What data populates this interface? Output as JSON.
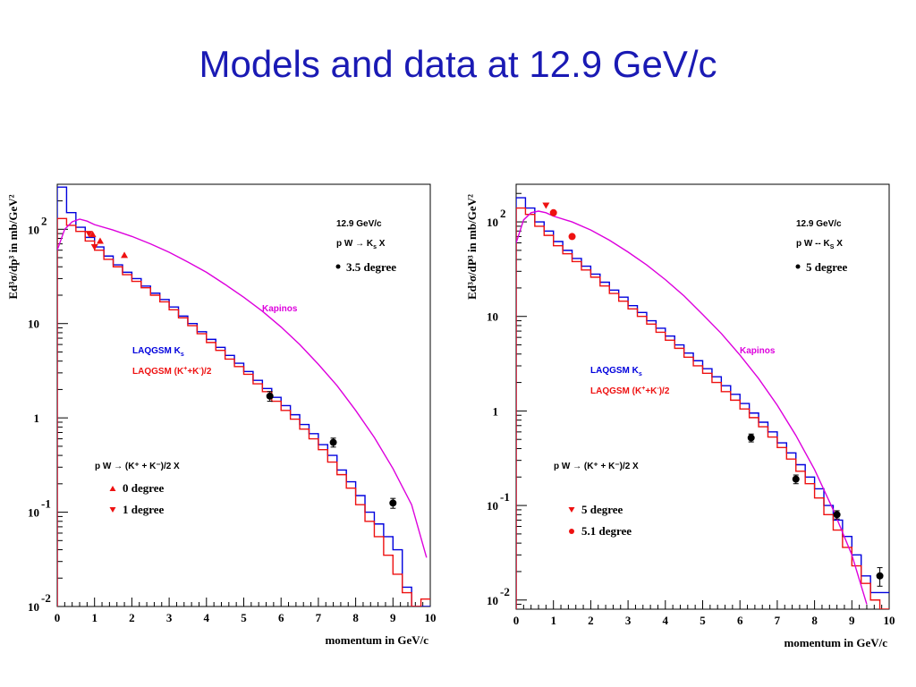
{
  "page": {
    "title": "Models and data at 12.9 GeV/c"
  },
  "chart_data": [
    {
      "type": "line",
      "xlabel": "momentum in GeV/c",
      "ylabel": "Ed³σ/dp³ in mb/GeV²",
      "xlim": [
        0,
        10
      ],
      "ylim": [
        0.01,
        300
      ],
      "log_y": true,
      "x_ticks": [
        "0",
        "1",
        "2",
        "3",
        "4",
        "5",
        "6",
        "7",
        "8",
        "9",
        "10"
      ],
      "y_ticks": [
        {
          "v": 0.01,
          "base": "10",
          "exp": "-2"
        },
        {
          "v": 0.1,
          "base": "10",
          "exp": "-1"
        },
        {
          "v": 1,
          "base": "1",
          "exp": ""
        },
        {
          "v": 10,
          "base": "10",
          "exp": ""
        },
        {
          "v": 100,
          "base": "10",
          "exp": "2"
        }
      ],
      "info": {
        "energy": "12.9 GeV/c",
        "reaction": "p W → K",
        "reaction_sub": "s",
        "reaction_end": " X"
      },
      "data_legend": "3.5 degree",
      "kapinos_label": "Kapinos",
      "model_labels": {
        "ks": "LAQGSM K",
        "ks_sub": "s",
        "kpm": "LAQGSM (K",
        "kpm_sup1": "+",
        "kpm_mid": "+K",
        "kpm_sup2": "-",
        "kpm_end": ")/2"
      },
      "red_reaction": "p W → (K⁺ + K⁻)/2 X",
      "red_legend": [
        "0 degree",
        "1 degree"
      ],
      "series": [
        {
          "name": "LAQGSM K",
          "color": "#0000dd",
          "kind": "step",
          "bin_width": 0.25,
          "values": [
            280,
            150,
            105,
            82,
            65,
            52,
            42,
            35,
            30,
            25,
            21,
            18,
            15,
            12,
            10,
            8.2,
            6.8,
            5.6,
            4.6,
            3.8,
            3.1,
            2.5,
            2.05,
            1.65,
            1.35,
            1.08,
            0.85,
            0.68,
            0.52,
            0.4,
            0.28,
            0.21,
            0.15,
            0.1,
            0.075,
            0.055,
            0.04,
            0.016,
            0.008,
            0.0045
          ]
        },
        {
          "name": "LAQGSM (K+ + K-)/2",
          "color": "#ee1111",
          "kind": "step",
          "bin_width": 0.25,
          "values": [
            130,
            110,
            95,
            75,
            60,
            48,
            40,
            33,
            28,
            24,
            20,
            17,
            14,
            11.5,
            9.5,
            7.8,
            6.3,
            5.2,
            4.2,
            3.5,
            2.9,
            2.3,
            1.9,
            1.5,
            1.2,
            0.97,
            0.76,
            0.6,
            0.46,
            0.34,
            0.25,
            0.18,
            0.12,
            0.08,
            0.055,
            0.035,
            0.022,
            0.014,
            0.009,
            0.012
          ]
        },
        {
          "name": "Kapinos",
          "color": "#dd00dd",
          "kind": "curve",
          "x": [
            0.0,
            0.2,
            0.4,
            0.6,
            0.8,
            1.0,
            1.5,
            2.0,
            2.5,
            3.0,
            3.5,
            4.0,
            4.5,
            5.0,
            5.5,
            6.0,
            6.5,
            7.0,
            7.5,
            8.0,
            8.5,
            9.0,
            9.5,
            9.9
          ],
          "y": [
            60,
            100,
            120,
            128,
            122,
            112,
            98,
            84,
            70,
            57,
            45,
            35,
            26,
            19,
            13.5,
            9.2,
            6.0,
            3.7,
            2.2,
            1.2,
            0.62,
            0.29,
            0.12,
            0.033
          ]
        }
      ],
      "points_black": [
        {
          "x": 5.7,
          "y": 1.7,
          "err": 0.2
        },
        {
          "x": 7.4,
          "y": 0.55,
          "err": 0.06
        },
        {
          "x": 9.0,
          "y": 0.125,
          "err": 0.015
        }
      ],
      "points_red_up": [
        {
          "x": 0.95,
          "y": 88
        },
        {
          "x": 1.15,
          "y": 75
        },
        {
          "x": 1.8,
          "y": 53
        }
      ],
      "points_red_down": [
        {
          "x": 0.85,
          "y": 90
        },
        {
          "x": 1.0,
          "y": 65
        }
      ]
    },
    {
      "type": "line",
      "xlabel": "momentum in GeV/c",
      "ylabel": "Ed³σ/dP³ in mb/GeV²",
      "xlim": [
        0,
        10
      ],
      "ylim": [
        0.008,
        250
      ],
      "log_y": true,
      "x_ticks": [
        "0",
        "1",
        "2",
        "3",
        "4",
        "5",
        "6",
        "7",
        "8",
        "9",
        "10"
      ],
      "y_ticks": [
        {
          "v": 0.01,
          "base": "10",
          "exp": "-2"
        },
        {
          "v": 0.1,
          "base": "10",
          "exp": "-1"
        },
        {
          "v": 1,
          "base": "1",
          "exp": ""
        },
        {
          "v": 10,
          "base": "10",
          "exp": ""
        },
        {
          "v": 100,
          "base": "10",
          "exp": "2"
        }
      ],
      "info": {
        "energy": "12.9 GeV/c",
        "reaction": "p W -- K",
        "reaction_sub": "S",
        "reaction_end": " X"
      },
      "data_legend": "5 degree",
      "kapinos_label": "Kapinos",
      "model_labels": {
        "ks": "LAQGSM K",
        "ks_sub": "s",
        "kpm": "LAQGSM (K",
        "kpm_sup1": "+",
        "kpm_mid": "+K",
        "kpm_sup2": "-",
        "kpm_end": ")/2"
      },
      "red_reaction": "p W → (K⁺ + K⁻)/2 X",
      "red_legend": [
        "5 degree",
        "5.1 degree"
      ],
      "series": [
        {
          "name": "LAQGSM K",
          "color": "#0000dd",
          "kind": "step",
          "bin_width": 0.25,
          "values": [
            180,
            140,
            100,
            80,
            62,
            50,
            41,
            34,
            28,
            23,
            19,
            16,
            13,
            11,
            9,
            7.5,
            6.2,
            5.0,
            4.1,
            3.4,
            2.8,
            2.3,
            1.85,
            1.5,
            1.2,
            0.95,
            0.76,
            0.6,
            0.46,
            0.36,
            0.27,
            0.2,
            0.15,
            0.1,
            0.07,
            0.047,
            0.03,
            0.018,
            0.012,
            0.012
          ]
        },
        {
          "name": "LAQGSM (K+ + K-)/2",
          "color": "#ee1111",
          "kind": "step",
          "bin_width": 0.25,
          "values": [
            140,
            120,
            90,
            72,
            56,
            46,
            38,
            31,
            26,
            21,
            17.5,
            14.5,
            12,
            10,
            8.3,
            6.8,
            5.6,
            4.6,
            3.7,
            3.0,
            2.5,
            2.0,
            1.6,
            1.3,
            1.05,
            0.85,
            0.68,
            0.53,
            0.41,
            0.31,
            0.23,
            0.17,
            0.12,
            0.08,
            0.055,
            0.036,
            0.023,
            0.015,
            0.01,
            0.008
          ]
        },
        {
          "name": "Kapinos",
          "color": "#dd00dd",
          "kind": "curve",
          "x": [
            0.0,
            0.2,
            0.4,
            0.6,
            0.8,
            1.0,
            1.5,
            2.0,
            2.5,
            3.0,
            3.5,
            4.0,
            4.5,
            5.0,
            5.5,
            6.0,
            6.5,
            7.0,
            7.5,
            8.0,
            8.5,
            9.0,
            9.4
          ],
          "y": [
            60,
            105,
            125,
            130,
            125,
            115,
            100,
            82,
            64,
            48,
            35,
            24.5,
            16.5,
            10.5,
            6.6,
            3.9,
            2.2,
            1.15,
            0.55,
            0.24,
            0.09,
            0.03,
            0.009
          ]
        }
      ],
      "points_black": [
        {
          "x": 6.3,
          "y": 0.52,
          "err": 0.05
        },
        {
          "x": 7.5,
          "y": 0.19,
          "err": 0.02
        },
        {
          "x": 8.6,
          "y": 0.08,
          "err": 0.008
        },
        {
          "x": 9.75,
          "y": 0.018,
          "err": 0.004
        }
      ],
      "points_red_up": [],
      "points_red_down": [
        {
          "x": 0.8,
          "y": 150
        }
      ],
      "points_red_dot": [
        {
          "x": 1.0,
          "y": 125
        },
        {
          "x": 1.5,
          "y": 70
        }
      ]
    }
  ]
}
